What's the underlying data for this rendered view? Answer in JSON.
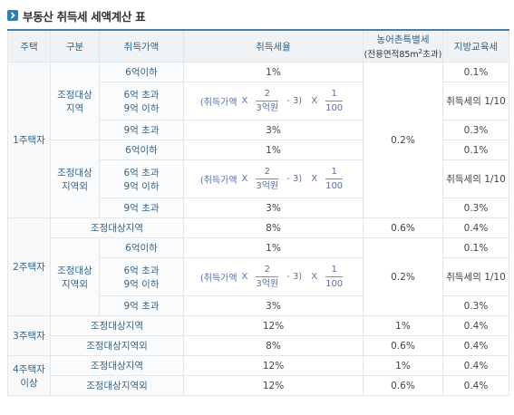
{
  "title": "부동산 취득세 세액계산 표",
  "headers": {
    "house": "주택",
    "division": "구분",
    "price": "취득가액",
    "rate": "취득세율",
    "rural_tax": "농어촌특별세",
    "rural_tax_sub_pre": "(전용면적85m",
    "rural_tax_sub_sup": "2",
    "rural_tax_sub_post": "초과)",
    "local_edu": "지방교육세"
  },
  "labels": {
    "one_house": "1주택자",
    "two_house": "2주택자",
    "three_house": "3주택자",
    "four_house_l1": "4주택자",
    "four_house_l2": "이상",
    "adj": "조정대상지역",
    "adj_l1": "조정대상",
    "adj_l2": "지역",
    "nonadj": "조정대상지역외",
    "nonadj_l1": "조정대상",
    "nonadj_l2": "지역외",
    "under6": "6억이하",
    "mid_l1": "6억 초과",
    "mid_l2": "9억 이하",
    "over9": "9억 초과"
  },
  "formula": {
    "prefix": "(취득가액",
    "times": "X",
    "num1": "2",
    "den1": "3억원",
    "minus": "- 3)",
    "num2": "1",
    "den2": "100"
  },
  "values": {
    "r1": "1%",
    "r3": "3%",
    "r8": "8%",
    "r12": "12%",
    "rural02": "0.2%",
    "rural06": "0.6%",
    "rural1": "1%",
    "edu01": "0.1%",
    "edu03": "0.3%",
    "edu04": "0.4%",
    "edu_tenth": "취득세의 1/10"
  }
}
